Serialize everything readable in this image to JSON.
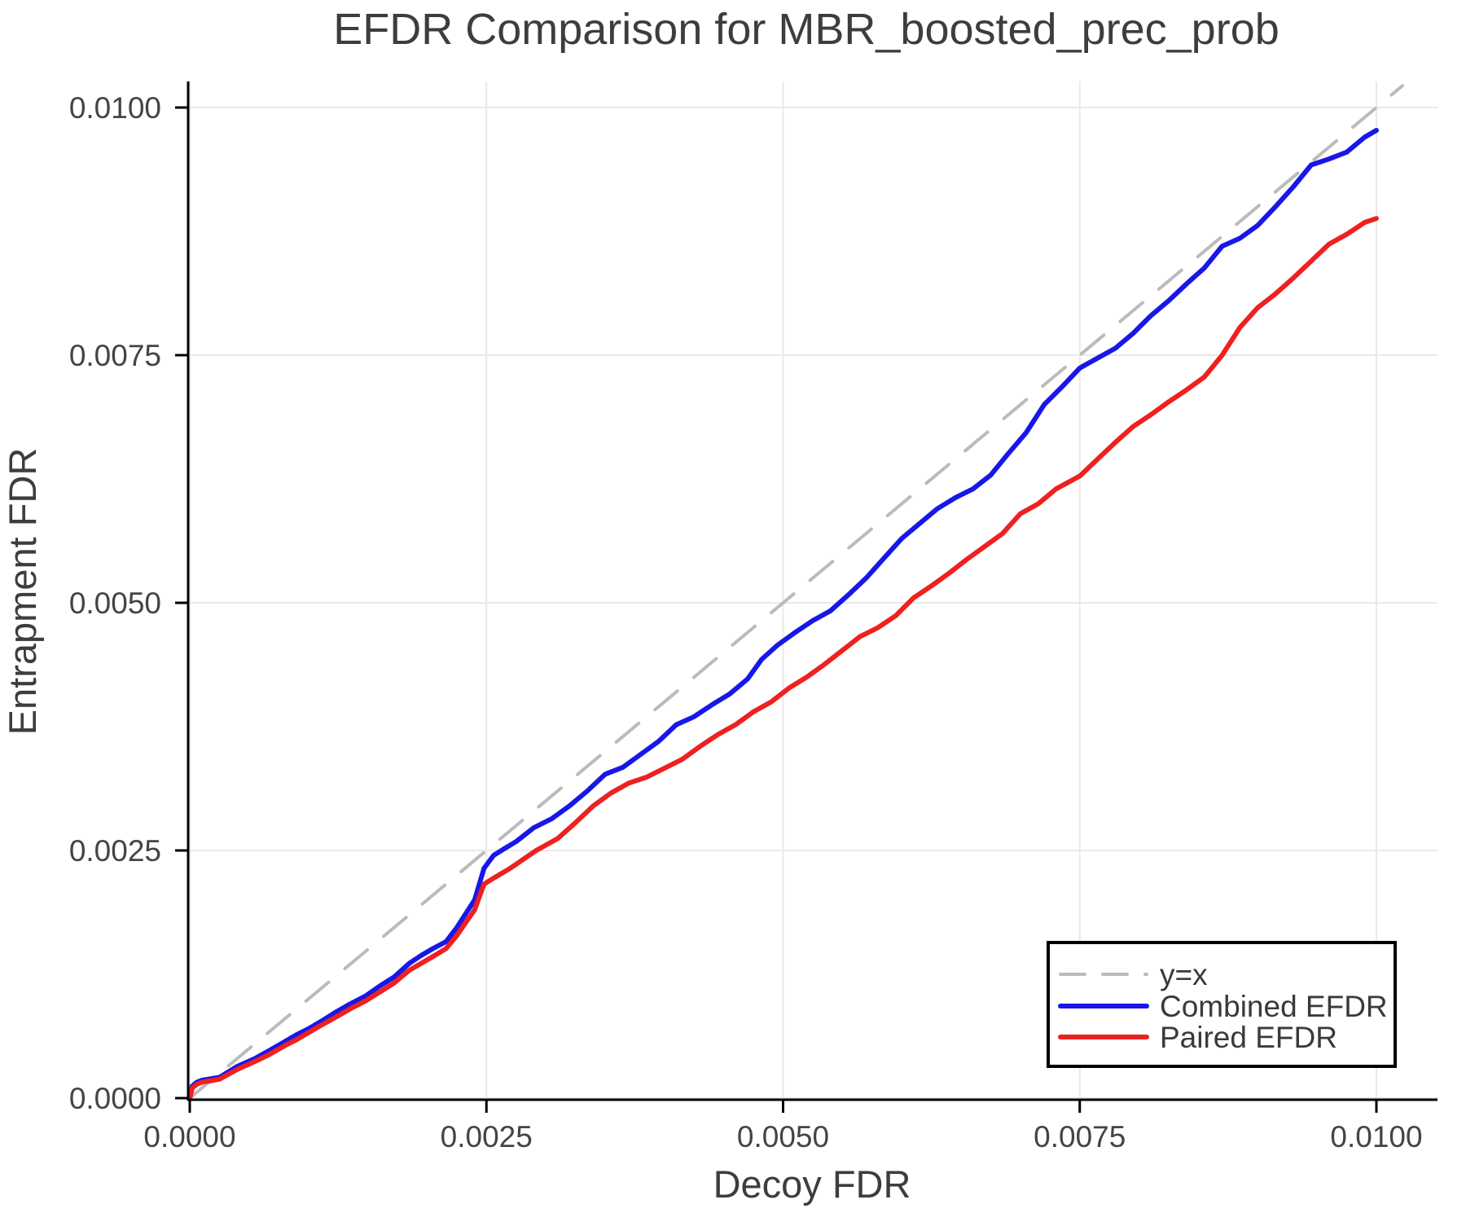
{
  "title": "EFDR Comparison for MBR_boosted_prec_prob",
  "colors": {
    "background": "#ffffff",
    "grid": "#e9e9e9",
    "axis": "#000000",
    "text_dark": "#3d3d3d",
    "tick_text": "#444444",
    "reference": "#bbbbbb",
    "combined": "#1717e8",
    "paired": "#ef2020"
  },
  "chart_data": {
    "type": "line",
    "title": "EFDR Comparison for MBR_boosted_prec_prob",
    "xlabel": "Decoy FDR",
    "ylabel": "Entrapment FDR",
    "xlim": [
      0.0,
      0.0105
    ],
    "ylim": [
      0.0,
      0.0103
    ],
    "grid": true,
    "x_ticks": {
      "values": [
        0.0,
        0.0025,
        0.005,
        0.0075,
        0.01
      ],
      "labels": [
        "0.0000",
        "0.0025",
        "0.0050",
        "0.0075",
        "0.0100"
      ]
    },
    "y_ticks": {
      "values": [
        0.0,
        0.0025,
        0.005,
        0.0075,
        0.01
      ],
      "labels": [
        "0.0000",
        "0.0025",
        "0.0050",
        "0.0075",
        "0.0100"
      ]
    },
    "legend": {
      "position": "bottom-right",
      "entries": [
        {
          "label": "y=x",
          "color": "#bbbbbb",
          "dashed": true
        },
        {
          "label": "Combined EFDR",
          "color": "#1717e8",
          "dashed": false
        },
        {
          "label": "Paired EFDR",
          "color": "#ef2020",
          "dashed": false
        }
      ]
    },
    "series": [
      {
        "name": "y=x",
        "color": "#bbbbbb",
        "dashed": true,
        "width": 4,
        "points": [
          [
            0.0,
            0.0
          ],
          [
            0.01022,
            0.01022
          ]
        ]
      },
      {
        "name": "Combined EFDR",
        "color": "#1717e8",
        "dashed": false,
        "width": 6,
        "points": [
          [
            0.0,
            0.0
          ],
          [
            2e-05,
            0.00012
          ],
          [
            6e-05,
            0.00016
          ],
          [
            0.0001,
            0.00018
          ],
          [
            0.00025,
            0.00021
          ],
          [
            0.0004,
            0.00032
          ],
          [
            0.00055,
            0.0004
          ],
          [
            0.00067,
            0.00048
          ],
          [
            0.0008,
            0.00057
          ],
          [
            0.0009,
            0.00064
          ],
          [
            0.001,
            0.0007
          ],
          [
            0.0011,
            0.00077
          ],
          [
            0.00122,
            0.00086
          ],
          [
            0.00135,
            0.00095
          ],
          [
            0.00148,
            0.00103
          ],
          [
            0.0016,
            0.00113
          ],
          [
            0.00172,
            0.00122
          ],
          [
            0.00185,
            0.00136
          ],
          [
            0.00195,
            0.00144
          ],
          [
            0.00205,
            0.00151
          ],
          [
            0.00216,
            0.00158
          ],
          [
            0.00225,
            0.00172
          ],
          [
            0.00233,
            0.00187
          ],
          [
            0.0024,
            0.002
          ],
          [
            0.00248,
            0.00232
          ],
          [
            0.00256,
            0.00245
          ],
          [
            0.00264,
            0.00251
          ],
          [
            0.00275,
            0.00259
          ],
          [
            0.0029,
            0.00273
          ],
          [
            0.00305,
            0.00282
          ],
          [
            0.0032,
            0.00295
          ],
          [
            0.00335,
            0.0031
          ],
          [
            0.0035,
            0.00327
          ],
          [
            0.00365,
            0.00334
          ],
          [
            0.0038,
            0.00347
          ],
          [
            0.00395,
            0.0036
          ],
          [
            0.0041,
            0.00377
          ],
          [
            0.00425,
            0.00385
          ],
          [
            0.0044,
            0.00397
          ],
          [
            0.00455,
            0.00408
          ],
          [
            0.0047,
            0.00423
          ],
          [
            0.00482,
            0.00443
          ],
          [
            0.00495,
            0.00457
          ],
          [
            0.0051,
            0.0047
          ],
          [
            0.00525,
            0.00482
          ],
          [
            0.0054,
            0.00492
          ],
          [
            0.00555,
            0.00508
          ],
          [
            0.0057,
            0.00525
          ],
          [
            0.00585,
            0.00545
          ],
          [
            0.006,
            0.00565
          ],
          [
            0.00615,
            0.0058
          ],
          [
            0.0063,
            0.00595
          ],
          [
            0.00645,
            0.00606
          ],
          [
            0.0066,
            0.00615
          ],
          [
            0.00675,
            0.00629
          ],
          [
            0.0069,
            0.00651
          ],
          [
            0.00705,
            0.00672
          ],
          [
            0.0072,
            0.007
          ],
          [
            0.00735,
            0.00718
          ],
          [
            0.0075,
            0.00737
          ],
          [
            0.00765,
            0.00747
          ],
          [
            0.0078,
            0.00757
          ],
          [
            0.00795,
            0.00772
          ],
          [
            0.0081,
            0.0079
          ],
          [
            0.00825,
            0.00805
          ],
          [
            0.0084,
            0.00822
          ],
          [
            0.00855,
            0.00838
          ],
          [
            0.0087,
            0.0086
          ],
          [
            0.00885,
            0.00868
          ],
          [
            0.009,
            0.00881
          ],
          [
            0.00915,
            0.009
          ],
          [
            0.0093,
            0.0092
          ],
          [
            0.00945,
            0.00942
          ],
          [
            0.0096,
            0.00948
          ],
          [
            0.00975,
            0.00955
          ],
          [
            0.0099,
            0.0097
          ],
          [
            0.01,
            0.00977
          ]
        ]
      },
      {
        "name": "Paired EFDR",
        "color": "#ef2020",
        "dashed": false,
        "width": 6,
        "points": [
          [
            0.0,
            0.0
          ],
          [
            2e-05,
            0.0001
          ],
          [
            6e-05,
            0.00014
          ],
          [
            0.0001,
            0.00016
          ],
          [
            0.00025,
            0.00019
          ],
          [
            0.0004,
            0.00029
          ],
          [
            0.00055,
            0.00037
          ],
          [
            0.00067,
            0.00044
          ],
          [
            0.0008,
            0.00053
          ],
          [
            0.0009,
            0.00059
          ],
          [
            0.001,
            0.00066
          ],
          [
            0.0011,
            0.00073
          ],
          [
            0.00122,
            0.00081
          ],
          [
            0.00135,
            0.0009
          ],
          [
            0.00148,
            0.00098
          ],
          [
            0.0016,
            0.00107
          ],
          [
            0.00172,
            0.00116
          ],
          [
            0.00185,
            0.00129
          ],
          [
            0.00195,
            0.00136
          ],
          [
            0.00205,
            0.00143
          ],
          [
            0.00216,
            0.00151
          ],
          [
            0.00225,
            0.00164
          ],
          [
            0.00233,
            0.00178
          ],
          [
            0.0024,
            0.0019
          ],
          [
            0.00248,
            0.00216
          ],
          [
            0.00256,
            0.00222
          ],
          [
            0.0027,
            0.00232
          ],
          [
            0.00292,
            0.0025
          ],
          [
            0.0031,
            0.00262
          ],
          [
            0.00325,
            0.00278
          ],
          [
            0.0034,
            0.00295
          ],
          [
            0.00355,
            0.00308
          ],
          [
            0.0037,
            0.00318
          ],
          [
            0.00385,
            0.00324
          ],
          [
            0.004,
            0.00333
          ],
          [
            0.00415,
            0.00342
          ],
          [
            0.0043,
            0.00355
          ],
          [
            0.00445,
            0.00367
          ],
          [
            0.0046,
            0.00377
          ],
          [
            0.00475,
            0.0039
          ],
          [
            0.0049,
            0.004
          ],
          [
            0.00505,
            0.00414
          ],
          [
            0.0052,
            0.00425
          ],
          [
            0.00535,
            0.00438
          ],
          [
            0.0055,
            0.00452
          ],
          [
            0.00565,
            0.00466
          ],
          [
            0.0058,
            0.00475
          ],
          [
            0.00595,
            0.00487
          ],
          [
            0.0061,
            0.00505
          ],
          [
            0.00625,
            0.00517
          ],
          [
            0.0064,
            0.0053
          ],
          [
            0.00655,
            0.00544
          ],
          [
            0.0067,
            0.00557
          ],
          [
            0.00685,
            0.0057
          ],
          [
            0.007,
            0.0059
          ],
          [
            0.00715,
            0.006
          ],
          [
            0.0073,
            0.00615
          ],
          [
            0.0075,
            0.00628
          ],
          [
            0.00765,
            0.00645
          ],
          [
            0.0078,
            0.00662
          ],
          [
            0.00795,
            0.00678
          ],
          [
            0.0081,
            0.0069
          ],
          [
            0.00825,
            0.00703
          ],
          [
            0.0084,
            0.00715
          ],
          [
            0.00855,
            0.00728
          ],
          [
            0.0087,
            0.0075
          ],
          [
            0.00885,
            0.00778
          ],
          [
            0.009,
            0.00798
          ],
          [
            0.00915,
            0.00812
          ],
          [
            0.0093,
            0.00828
          ],
          [
            0.00945,
            0.00845
          ],
          [
            0.0096,
            0.00862
          ],
          [
            0.00975,
            0.00872
          ],
          [
            0.0099,
            0.00884
          ],
          [
            0.01,
            0.00888
          ]
        ]
      }
    ]
  }
}
